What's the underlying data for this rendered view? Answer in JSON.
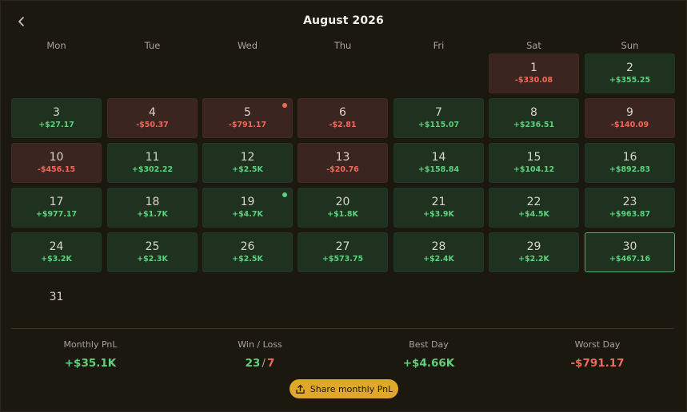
{
  "header": {
    "title": "August 2026",
    "back_icon": "chevron-left-icon"
  },
  "weekdays": [
    "Mon",
    "Tue",
    "Wed",
    "Thu",
    "Fri",
    "Sat",
    "Sun"
  ],
  "colors": {
    "win": "#5fd07d",
    "loss": "#f06a5c",
    "accent": "#e0a82a"
  },
  "days": [
    {
      "day": "1",
      "pnl": "-$330.08",
      "status": "loss"
    },
    {
      "day": "2",
      "pnl": "+$355.25",
      "status": "win"
    },
    {
      "day": "3",
      "pnl": "+$27.17",
      "status": "win"
    },
    {
      "day": "4",
      "pnl": "-$50.37",
      "status": "loss"
    },
    {
      "day": "5",
      "pnl": "-$791.17",
      "status": "loss",
      "dot": "loss"
    },
    {
      "day": "6",
      "pnl": "-$2.81",
      "status": "loss"
    },
    {
      "day": "7",
      "pnl": "+$115.07",
      "status": "win"
    },
    {
      "day": "8",
      "pnl": "+$236.51",
      "status": "win"
    },
    {
      "day": "9",
      "pnl": "-$140.09",
      "status": "loss"
    },
    {
      "day": "10",
      "pnl": "-$456.15",
      "status": "loss"
    },
    {
      "day": "11",
      "pnl": "+$302.22",
      "status": "win"
    },
    {
      "day": "12",
      "pnl": "+$2.5K",
      "status": "win"
    },
    {
      "day": "13",
      "pnl": "-$20.76",
      "status": "loss"
    },
    {
      "day": "14",
      "pnl": "+$158.84",
      "status": "win"
    },
    {
      "day": "15",
      "pnl": "+$104.12",
      "status": "win"
    },
    {
      "day": "16",
      "pnl": "+$892.83",
      "status": "win"
    },
    {
      "day": "17",
      "pnl": "+$977.17",
      "status": "win"
    },
    {
      "day": "18",
      "pnl": "+$1.7K",
      "status": "win"
    },
    {
      "day": "19",
      "pnl": "+$4.7K",
      "status": "win",
      "dot": "win"
    },
    {
      "day": "20",
      "pnl": "+$1.8K",
      "status": "win"
    },
    {
      "day": "21",
      "pnl": "+$3.9K",
      "status": "win"
    },
    {
      "day": "22",
      "pnl": "+$4.5K",
      "status": "win"
    },
    {
      "day": "23",
      "pnl": "+$963.87",
      "status": "win"
    },
    {
      "day": "24",
      "pnl": "+$3.2K",
      "status": "win"
    },
    {
      "day": "25",
      "pnl": "+$2.3K",
      "status": "win"
    },
    {
      "day": "26",
      "pnl": "+$2.5K",
      "status": "win"
    },
    {
      "day": "27",
      "pnl": "+$573.75",
      "status": "win"
    },
    {
      "day": "28",
      "pnl": "+$2.4K",
      "status": "win"
    },
    {
      "day": "29",
      "pnl": "+$2.2K",
      "status": "win"
    },
    {
      "day": "30",
      "pnl": "+$467.16",
      "status": "win",
      "selected": true
    },
    {
      "day": "31",
      "pnl": "",
      "status": "none"
    }
  ],
  "summary": {
    "monthly_pnl": {
      "label": "Monthly PnL",
      "value": "+$35.1K"
    },
    "win_loss": {
      "label": "Win / Loss",
      "wins": "23",
      "separator": "/",
      "losses": "7"
    },
    "best_day": {
      "label": "Best Day",
      "value": "+$4.66K"
    },
    "worst_day": {
      "label": "Worst Day",
      "value": "-$791.17"
    }
  },
  "share_button": {
    "label": "Share monthly PnL",
    "icon": "share-upload-icon"
  }
}
